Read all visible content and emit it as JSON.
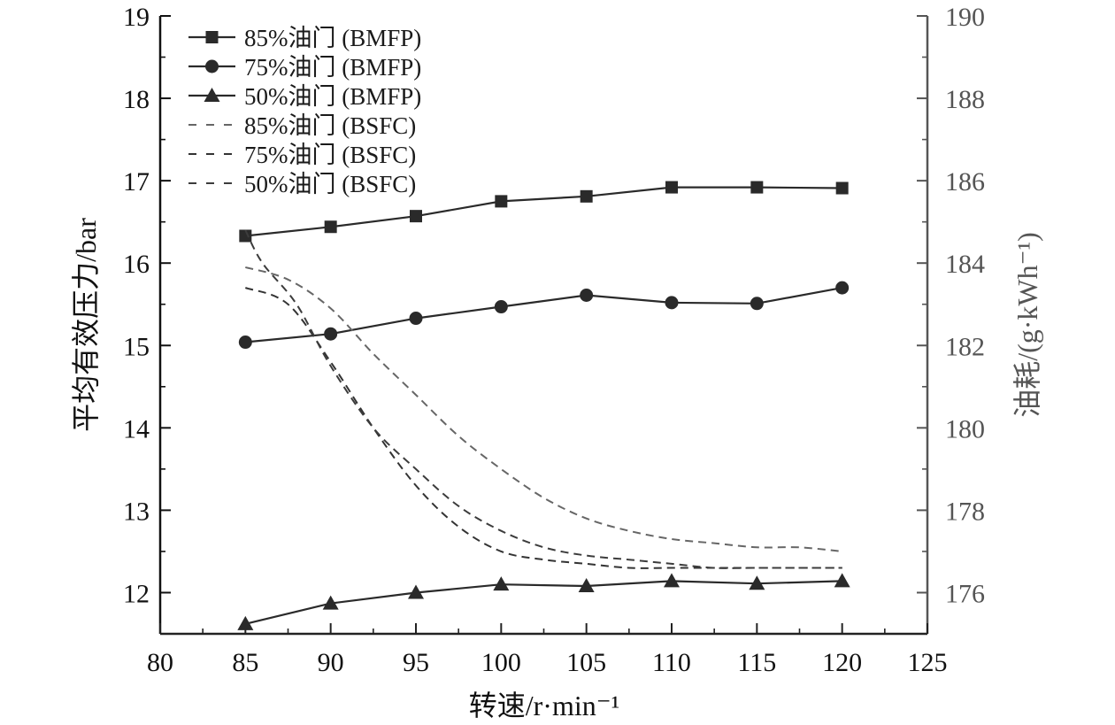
{
  "chart_data": {
    "type": "line",
    "title": "",
    "xlabel": "转速/r·min⁻¹",
    "ylabel_left": "平均有效压力/bar",
    "ylabel_right": "油耗/(g·kWh⁻¹)",
    "xlim": [
      80,
      125
    ],
    "ylim_left": [
      11.5,
      19
    ],
    "ylim_right": [
      175,
      190
    ],
    "x_ticks": [
      "80",
      "85",
      "90",
      "95",
      "100",
      "105",
      "110",
      "115",
      "120",
      "125"
    ],
    "y_left_ticks": [
      "12",
      "13",
      "14",
      "15",
      "16",
      "17",
      "18",
      "19"
    ],
    "y_right_ticks": [
      "176",
      "178",
      "180",
      "182",
      "184",
      "186",
      "188",
      "190"
    ],
    "legend_position": "top-left",
    "grid": false,
    "colors": {
      "axis_left": "#111111",
      "axis_right": "#555555",
      "bmfp": "#2a2a2a",
      "bsfc85": "#666666",
      "bsfc75": "#333333",
      "bsfc50": "#3c3c3c"
    },
    "series": [
      {
        "name": "85%油门 (BMFP)",
        "axis": "left",
        "marker": "square",
        "style": "solid",
        "x": [
          85,
          90,
          95,
          100,
          105,
          110,
          115,
          120
        ],
        "values": [
          16.33,
          16.44,
          16.57,
          16.75,
          16.81,
          16.92,
          16.92,
          16.91
        ]
      },
      {
        "name": "75%油门 (BMFP)",
        "axis": "left",
        "marker": "circle",
        "style": "solid",
        "x": [
          85,
          90,
          95,
          100,
          105,
          110,
          115,
          120
        ],
        "values": [
          15.04,
          15.14,
          15.33,
          15.47,
          15.61,
          15.52,
          15.51,
          15.7
        ]
      },
      {
        "name": "50%油门 (BMFP)",
        "axis": "left",
        "marker": "triangle",
        "style": "solid",
        "x": [
          85,
          90,
          95,
          100,
          105,
          110,
          115,
          120
        ],
        "values": [
          11.62,
          11.87,
          12.0,
          12.1,
          12.08,
          12.14,
          12.11,
          12.14
        ]
      },
      {
        "name": "85%油门 (BSFC)",
        "axis": "right",
        "marker": "none",
        "style": "dashed",
        "x": [
          85,
          87.5,
          90,
          92.5,
          95,
          97.5,
          100,
          102.5,
          105,
          107.5,
          110,
          112.5,
          115,
          117.5,
          120
        ],
        "values": [
          183.9,
          183.6,
          182.9,
          181.8,
          180.8,
          179.8,
          179.0,
          178.3,
          177.8,
          177.5,
          177.3,
          177.2,
          177.1,
          177.1,
          177.0
        ]
      },
      {
        "name": "75%油门 (BSFC)",
        "axis": "right",
        "marker": "none",
        "style": "dashed",
        "x": [
          85,
          87.5,
          90,
          92.5,
          95,
          97.5,
          100,
          102.5,
          105,
          107.5,
          110,
          112.5,
          115,
          117.5,
          120
        ],
        "values": [
          183.4,
          183.0,
          181.6,
          180.0,
          178.6,
          177.6,
          177.0,
          176.8,
          176.7,
          176.6,
          176.6,
          176.6,
          176.6,
          176.6,
          176.6
        ]
      },
      {
        "name": "50%油门 (BSFC)",
        "axis": "right",
        "marker": "none",
        "style": "dashed",
        "x": [
          85,
          86,
          88,
          90,
          92.5,
          95,
          97.5,
          100,
          102.5,
          105,
          107.5,
          110,
          112.5,
          115,
          117.5,
          120
        ],
        "values": [
          184.8,
          184.0,
          183.0,
          181.5,
          180.0,
          179.0,
          178.1,
          177.5,
          177.1,
          176.9,
          176.8,
          176.7,
          176.6,
          176.6,
          176.6,
          176.6
        ]
      }
    ]
  }
}
